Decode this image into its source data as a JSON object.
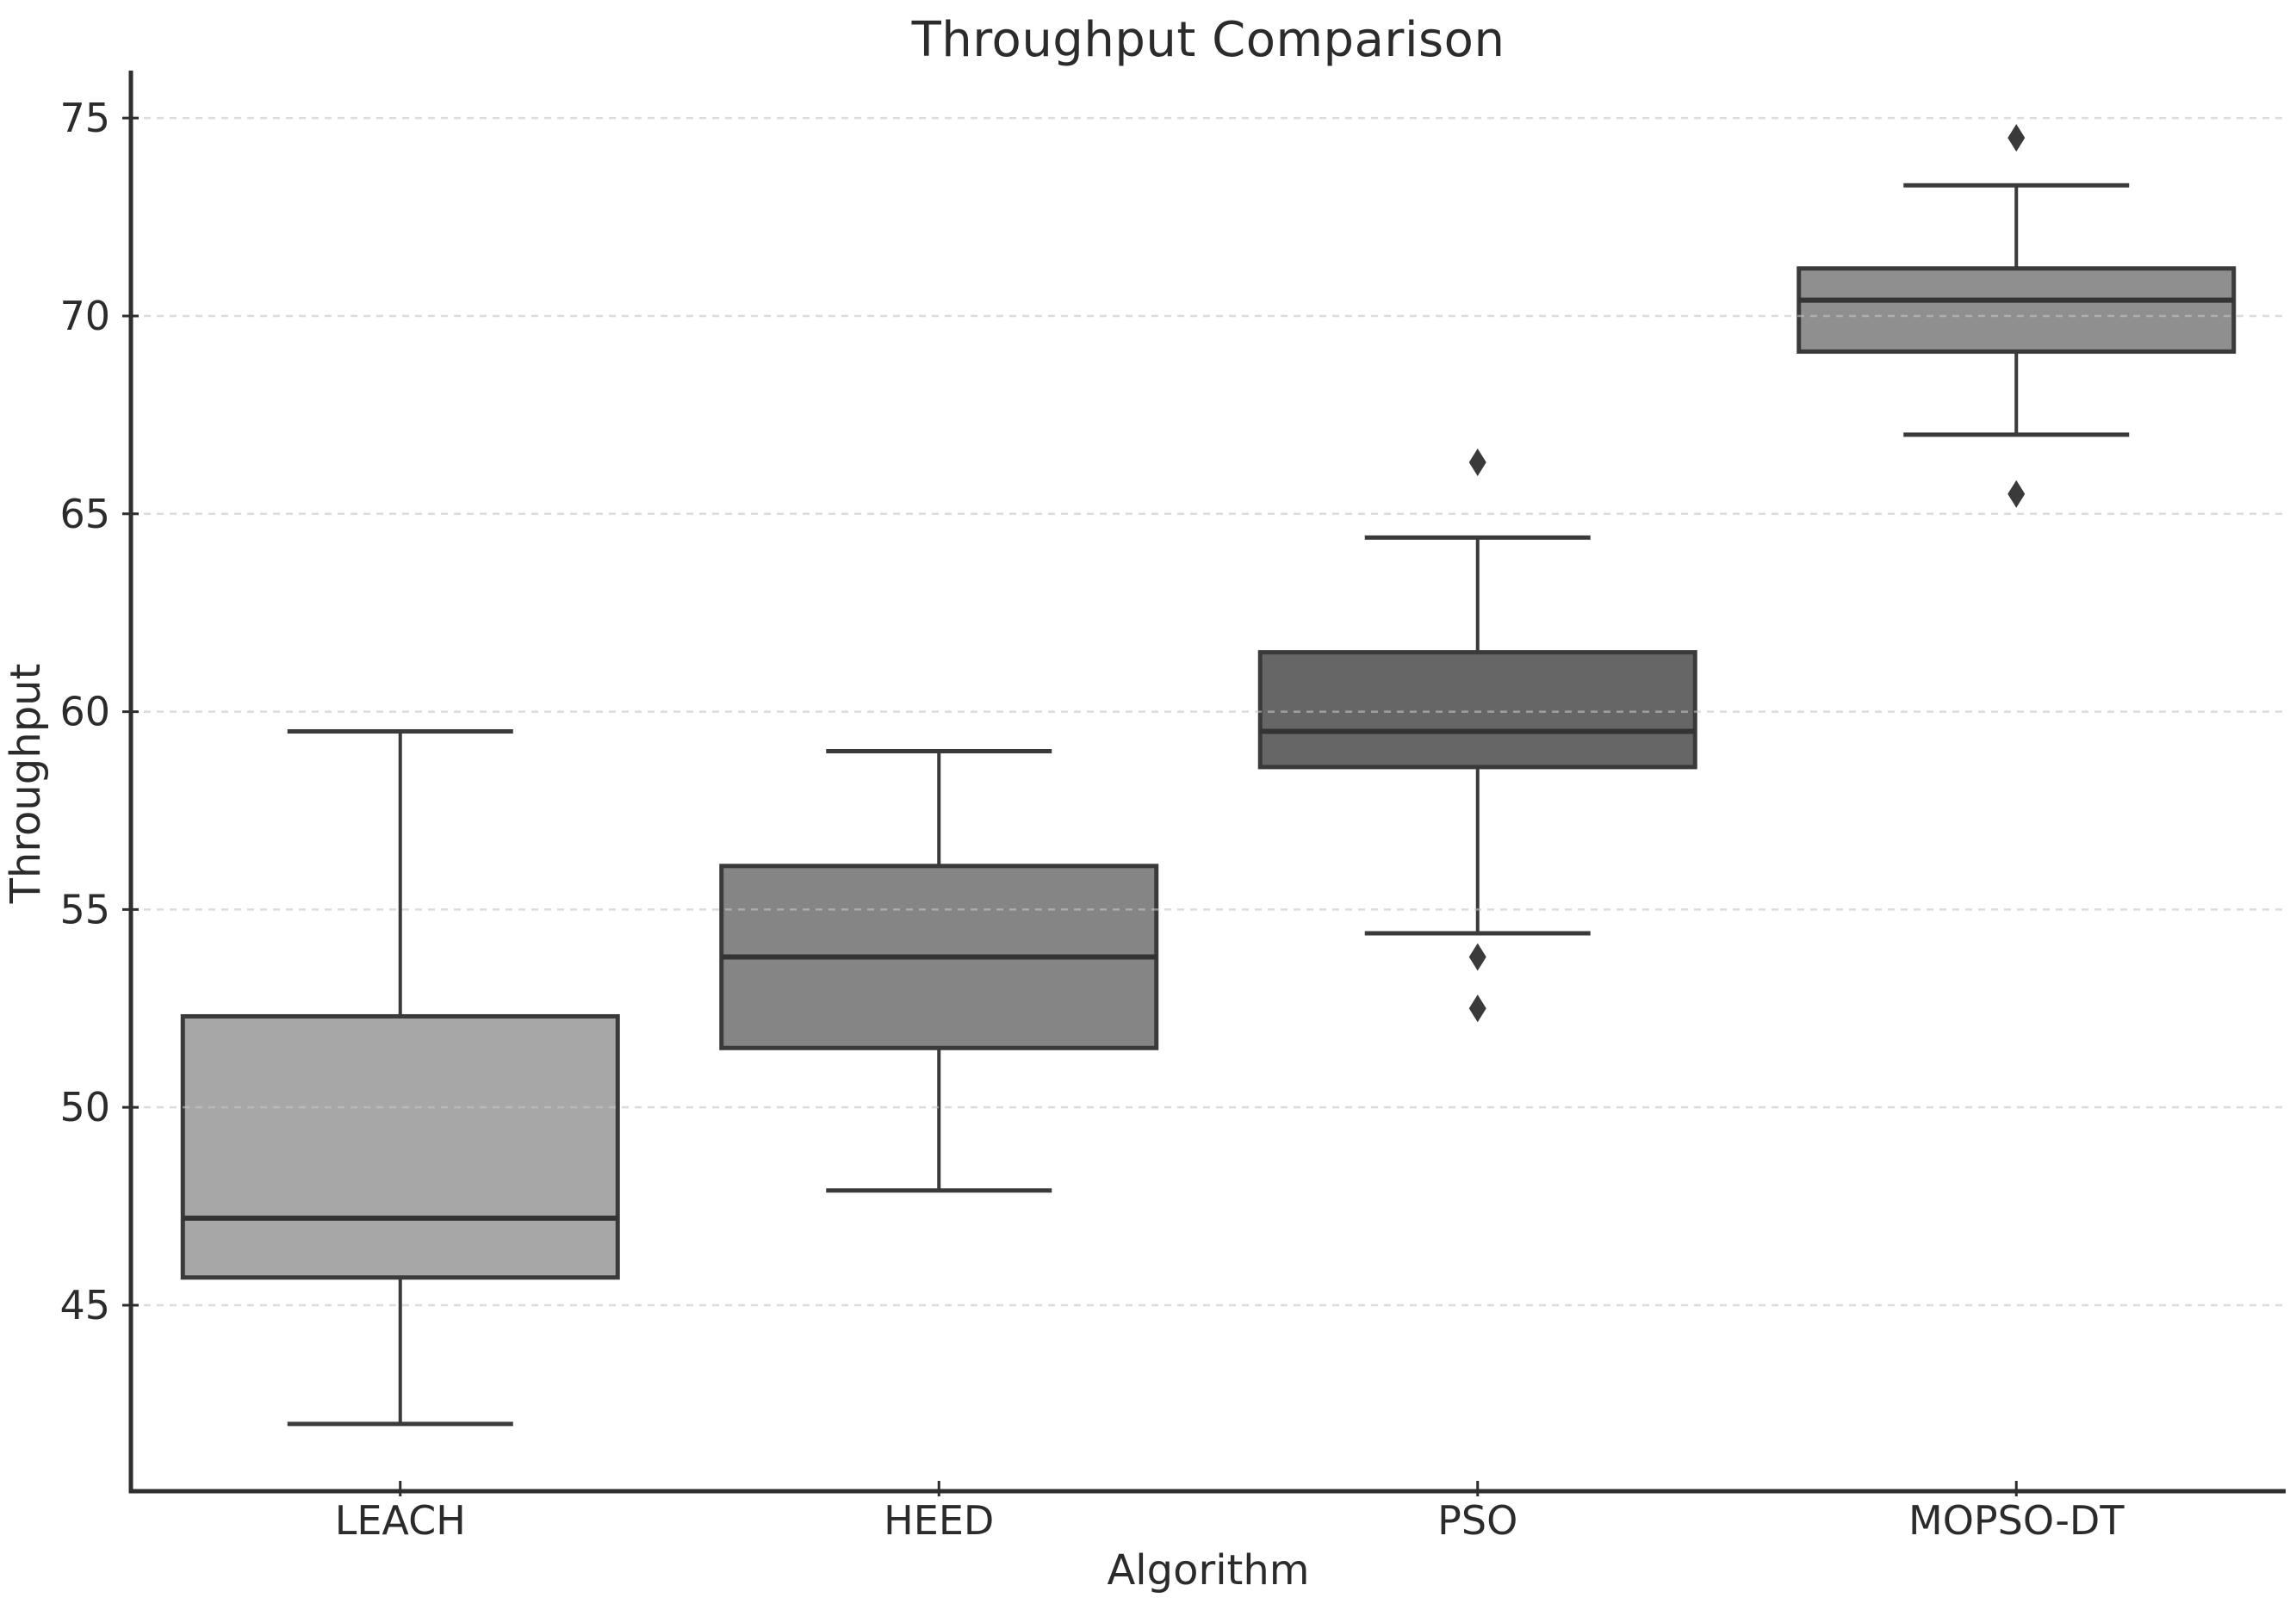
{
  "figure": {
    "title": "Throughput Comparison",
    "xlabel": "Algorithm",
    "ylabel": "Throughput"
  },
  "chart_data": {
    "type": "box",
    "title": "Throughput Comparison",
    "xlabel": "Algorithm",
    "ylabel": "Throughput",
    "categories": [
      "LEACH",
      "HEED",
      "PSO",
      "MOPSO-DT"
    ],
    "yticks": [
      45,
      50,
      55,
      60,
      65,
      70,
      75
    ],
    "ylim": [
      40.3,
      76.2
    ],
    "grid": "horizontal-dashed",
    "legend": "none",
    "series": [
      {
        "name": "LEACH",
        "whisker_low": 42.0,
        "q1": 45.7,
        "median": 47.2,
        "q3": 52.3,
        "whisker_high": 59.5,
        "outliers": [],
        "fill": "#a7a7a7"
      },
      {
        "name": "HEED",
        "whisker_low": 47.9,
        "q1": 51.5,
        "median": 53.8,
        "q3": 56.1,
        "whisker_high": 59.0,
        "outliers": [],
        "fill": "#858585"
      },
      {
        "name": "PSO",
        "whisker_low": 54.4,
        "q1": 58.6,
        "median": 59.5,
        "q3": 61.5,
        "whisker_high": 64.4,
        "outliers": [
          66.3,
          53.8,
          52.5
        ],
        "fill": "#666666"
      },
      {
        "name": "MOPSO-DT",
        "whisker_low": 67.0,
        "q1": 69.1,
        "median": 70.4,
        "q3": 71.2,
        "whisker_high": 73.3,
        "outliers": [
          74.5,
          65.5
        ],
        "fill": "#8f8f8f"
      }
    ],
    "colors": {
      "box_edge": "#3a3a3a",
      "whisker": "#3a3a3a",
      "median": "#333333",
      "outlier": "#3a3a3a",
      "grid": "#c4c4c4",
      "spine": "#2e2e2e",
      "text": "#2b2b2b",
      "background": "#ffffff"
    }
  }
}
